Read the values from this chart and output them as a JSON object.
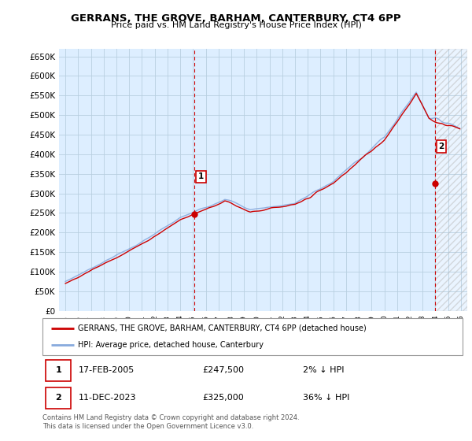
{
  "title1": "GERRANS, THE GROVE, BARHAM, CANTERBURY, CT4 6PP",
  "title2": "Price paid vs. HM Land Registry's House Price Index (HPI)",
  "ytick_values": [
    0,
    50000,
    100000,
    150000,
    200000,
    250000,
    300000,
    350000,
    400000,
    450000,
    500000,
    550000,
    600000,
    650000
  ],
  "ylabel_ticks": [
    "£0",
    "£50K",
    "£100K",
    "£150K",
    "£200K",
    "£250K",
    "£300K",
    "£350K",
    "£400K",
    "£450K",
    "£500K",
    "£550K",
    "£600K",
    "£650K"
  ],
  "sale1_date": 2005.12,
  "sale1_price": 247500,
  "sale2_date": 2023.95,
  "sale2_price": 325000,
  "legend_line1": "GERRANS, THE GROVE, BARHAM, CANTERBURY, CT4 6PP (detached house)",
  "legend_line2": "HPI: Average price, detached house, Canterbury",
  "ann1_date": "17-FEB-2005",
  "ann1_price": "£247,500",
  "ann1_hpi": "2% ↓ HPI",
  "ann2_date": "11-DEC-2023",
  "ann2_price": "£325,000",
  "ann2_hpi": "36% ↓ HPI",
  "copyright": "Contains HM Land Registry data © Crown copyright and database right 2024.\nThis data is licensed under the Open Government Licence v3.0.",
  "sale_color": "#cc0000",
  "hpi_color": "#88aadd",
  "vline_color": "#cc0000",
  "grid_color": "#b8cfe0",
  "background_color": "#ddeeff",
  "hatch_color": "#bbbbbb",
  "ylim_max": 670000,
  "xmin": 1995,
  "xmax": 2026
}
